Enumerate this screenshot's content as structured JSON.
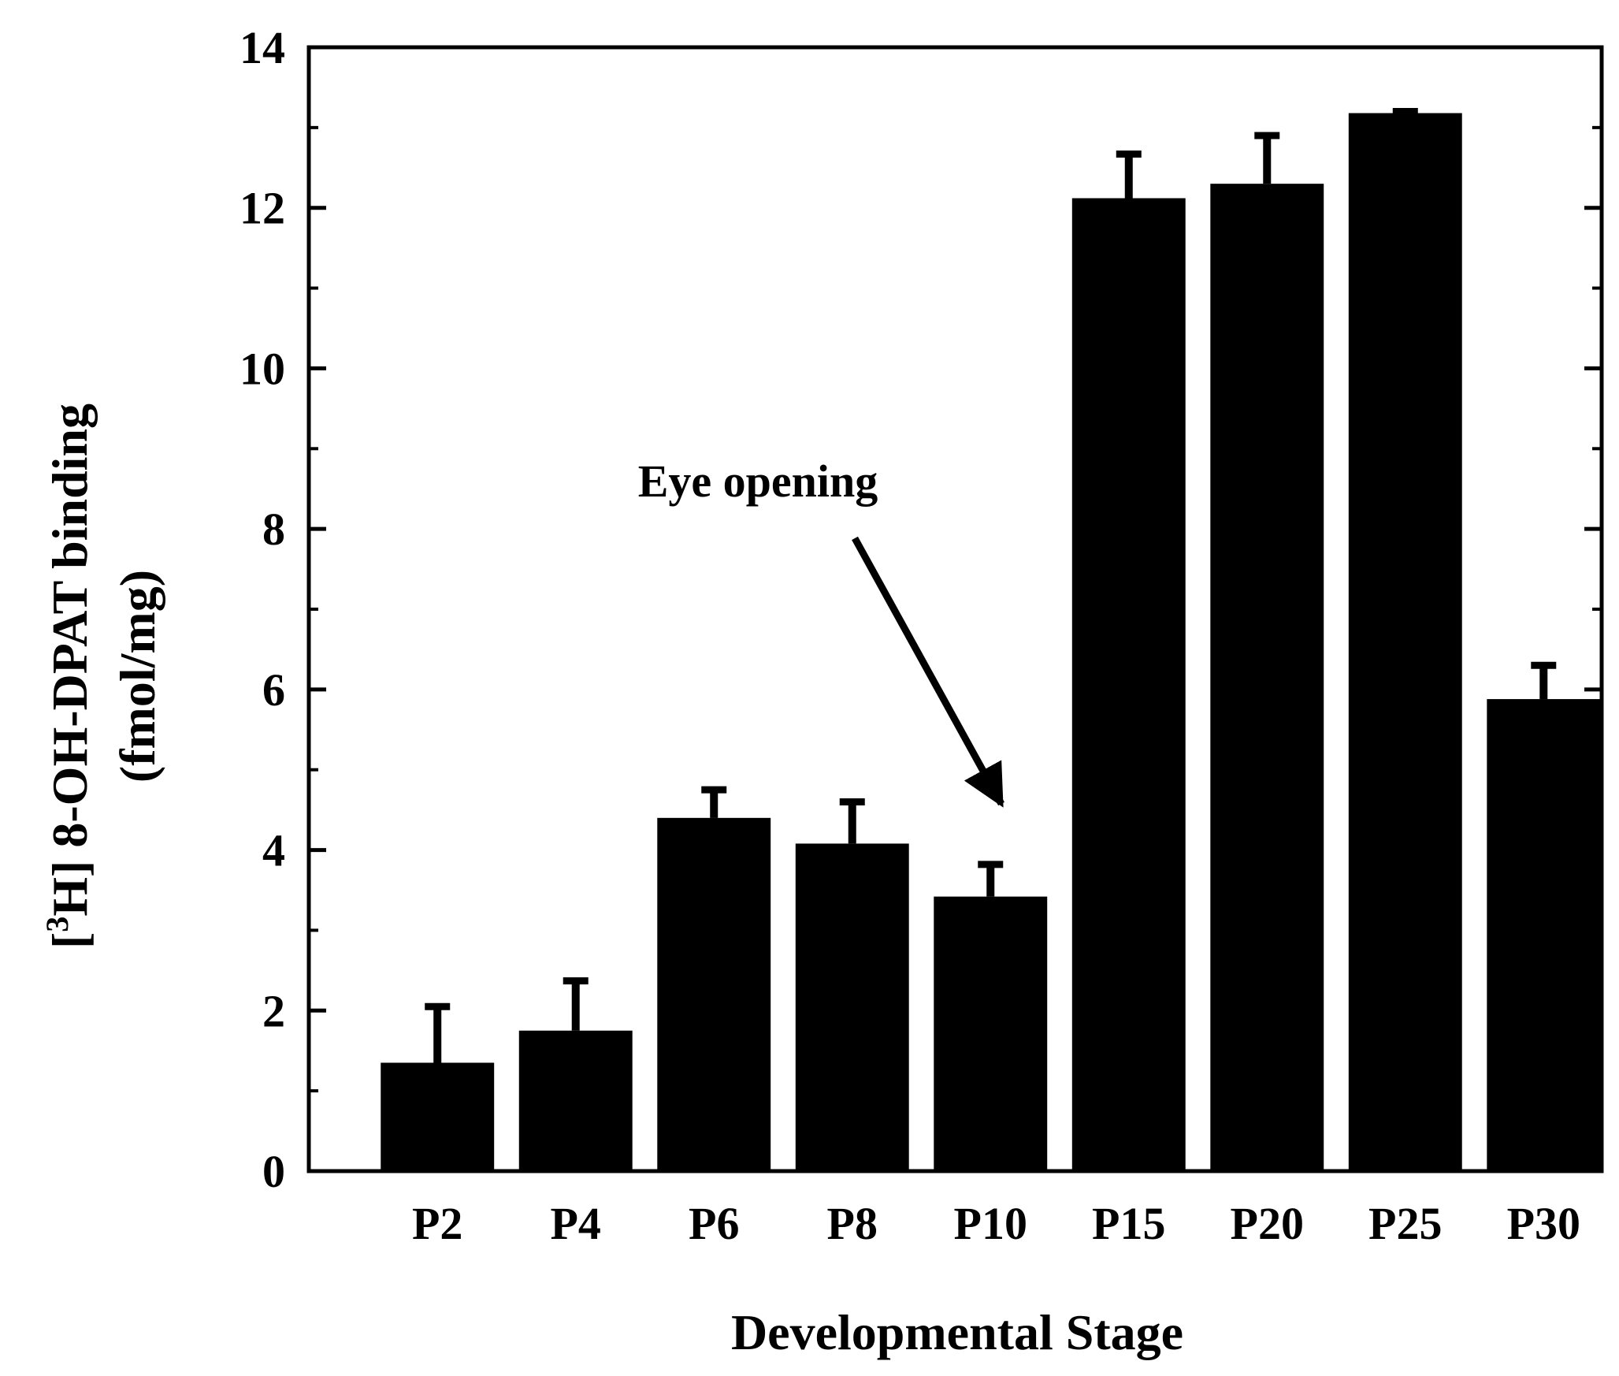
{
  "chart_data": {
    "type": "bar",
    "title": "",
    "categories": [
      "P2",
      "P4",
      "P6",
      "P8",
      "P10",
      "P15",
      "P20",
      "P25",
      "P30"
    ],
    "series": [
      {
        "name": "[3H] 8-OH-DPAT binding",
        "values": [
          1.35,
          1.75,
          4.4,
          4.08,
          3.42,
          12.12,
          12.3,
          13.18,
          5.88
        ],
        "errors": [
          0.7,
          0.62,
          0.35,
          0.52,
          0.4,
          0.55,
          0.6,
          0.02,
          0.42
        ]
      }
    ],
    "xlabel": "Developmental Stage",
    "ylabel": {
      "bracket_open": "[",
      "superscript": "3",
      "line1_rest": "H] 8-OH-DPAT binding",
      "line2": "(fmol/mg)"
    },
    "ylim": [
      0,
      14
    ],
    "yticks": [
      "0",
      "2",
      "4",
      "6",
      "8",
      "10",
      "12",
      "14"
    ],
    "grid": false,
    "annotation": {
      "text": "Eye opening",
      "points_to_between": [
        "P10",
        "P15"
      ]
    },
    "colors": {
      "bar": "#000000",
      "axis": "#000000",
      "background": "#ffffff"
    }
  }
}
